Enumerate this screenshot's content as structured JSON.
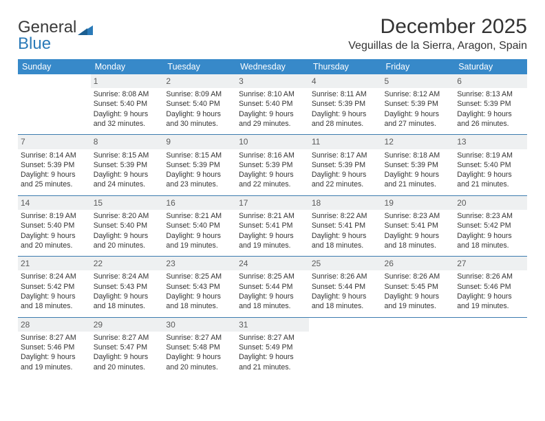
{
  "brand": {
    "word1": "General",
    "word2": "Blue"
  },
  "title": "December 2025",
  "location": "Veguillas de la Sierra, Aragon, Spain",
  "colors": {
    "header_bg": "#3789c9",
    "header_fg": "#ffffff",
    "daynum_bg": "#eef0f1",
    "rule": "#3a7aae",
    "text": "#333333"
  },
  "dayNames": [
    "Sunday",
    "Monday",
    "Tuesday",
    "Wednesday",
    "Thursday",
    "Friday",
    "Saturday"
  ],
  "weeks": [
    [
      {
        "n": "",
        "lines": []
      },
      {
        "n": "1",
        "lines": [
          "Sunrise: 8:08 AM",
          "Sunset: 5:40 PM",
          "Daylight: 9 hours and 32 minutes."
        ]
      },
      {
        "n": "2",
        "lines": [
          "Sunrise: 8:09 AM",
          "Sunset: 5:40 PM",
          "Daylight: 9 hours and 30 minutes."
        ]
      },
      {
        "n": "3",
        "lines": [
          "Sunrise: 8:10 AM",
          "Sunset: 5:40 PM",
          "Daylight: 9 hours and 29 minutes."
        ]
      },
      {
        "n": "4",
        "lines": [
          "Sunrise: 8:11 AM",
          "Sunset: 5:39 PM",
          "Daylight: 9 hours and 28 minutes."
        ]
      },
      {
        "n": "5",
        "lines": [
          "Sunrise: 8:12 AM",
          "Sunset: 5:39 PM",
          "Daylight: 9 hours and 27 minutes."
        ]
      },
      {
        "n": "6",
        "lines": [
          "Sunrise: 8:13 AM",
          "Sunset: 5:39 PM",
          "Daylight: 9 hours and 26 minutes."
        ]
      }
    ],
    [
      {
        "n": "7",
        "lines": [
          "Sunrise: 8:14 AM",
          "Sunset: 5:39 PM",
          "Daylight: 9 hours and 25 minutes."
        ]
      },
      {
        "n": "8",
        "lines": [
          "Sunrise: 8:15 AM",
          "Sunset: 5:39 PM",
          "Daylight: 9 hours and 24 minutes."
        ]
      },
      {
        "n": "9",
        "lines": [
          "Sunrise: 8:15 AM",
          "Sunset: 5:39 PM",
          "Daylight: 9 hours and 23 minutes."
        ]
      },
      {
        "n": "10",
        "lines": [
          "Sunrise: 8:16 AM",
          "Sunset: 5:39 PM",
          "Daylight: 9 hours and 22 minutes."
        ]
      },
      {
        "n": "11",
        "lines": [
          "Sunrise: 8:17 AM",
          "Sunset: 5:39 PM",
          "Daylight: 9 hours and 22 minutes."
        ]
      },
      {
        "n": "12",
        "lines": [
          "Sunrise: 8:18 AM",
          "Sunset: 5:39 PM",
          "Daylight: 9 hours and 21 minutes."
        ]
      },
      {
        "n": "13",
        "lines": [
          "Sunrise: 8:19 AM",
          "Sunset: 5:40 PM",
          "Daylight: 9 hours and 21 minutes."
        ]
      }
    ],
    [
      {
        "n": "14",
        "lines": [
          "Sunrise: 8:19 AM",
          "Sunset: 5:40 PM",
          "Daylight: 9 hours and 20 minutes."
        ]
      },
      {
        "n": "15",
        "lines": [
          "Sunrise: 8:20 AM",
          "Sunset: 5:40 PM",
          "Daylight: 9 hours and 20 minutes."
        ]
      },
      {
        "n": "16",
        "lines": [
          "Sunrise: 8:21 AM",
          "Sunset: 5:40 PM",
          "Daylight: 9 hours and 19 minutes."
        ]
      },
      {
        "n": "17",
        "lines": [
          "Sunrise: 8:21 AM",
          "Sunset: 5:41 PM",
          "Daylight: 9 hours and 19 minutes."
        ]
      },
      {
        "n": "18",
        "lines": [
          "Sunrise: 8:22 AM",
          "Sunset: 5:41 PM",
          "Daylight: 9 hours and 18 minutes."
        ]
      },
      {
        "n": "19",
        "lines": [
          "Sunrise: 8:23 AM",
          "Sunset: 5:41 PM",
          "Daylight: 9 hours and 18 minutes."
        ]
      },
      {
        "n": "20",
        "lines": [
          "Sunrise: 8:23 AM",
          "Sunset: 5:42 PM",
          "Daylight: 9 hours and 18 minutes."
        ]
      }
    ],
    [
      {
        "n": "21",
        "lines": [
          "Sunrise: 8:24 AM",
          "Sunset: 5:42 PM",
          "Daylight: 9 hours and 18 minutes."
        ]
      },
      {
        "n": "22",
        "lines": [
          "Sunrise: 8:24 AM",
          "Sunset: 5:43 PM",
          "Daylight: 9 hours and 18 minutes."
        ]
      },
      {
        "n": "23",
        "lines": [
          "Sunrise: 8:25 AM",
          "Sunset: 5:43 PM",
          "Daylight: 9 hours and 18 minutes."
        ]
      },
      {
        "n": "24",
        "lines": [
          "Sunrise: 8:25 AM",
          "Sunset: 5:44 PM",
          "Daylight: 9 hours and 18 minutes."
        ]
      },
      {
        "n": "25",
        "lines": [
          "Sunrise: 8:26 AM",
          "Sunset: 5:44 PM",
          "Daylight: 9 hours and 18 minutes."
        ]
      },
      {
        "n": "26",
        "lines": [
          "Sunrise: 8:26 AM",
          "Sunset: 5:45 PM",
          "Daylight: 9 hours and 19 minutes."
        ]
      },
      {
        "n": "27",
        "lines": [
          "Sunrise: 8:26 AM",
          "Sunset: 5:46 PM",
          "Daylight: 9 hours and 19 minutes."
        ]
      }
    ],
    [
      {
        "n": "28",
        "lines": [
          "Sunrise: 8:27 AM",
          "Sunset: 5:46 PM",
          "Daylight: 9 hours and 19 minutes."
        ]
      },
      {
        "n": "29",
        "lines": [
          "Sunrise: 8:27 AM",
          "Sunset: 5:47 PM",
          "Daylight: 9 hours and 20 minutes."
        ]
      },
      {
        "n": "30",
        "lines": [
          "Sunrise: 8:27 AM",
          "Sunset: 5:48 PM",
          "Daylight: 9 hours and 20 minutes."
        ]
      },
      {
        "n": "31",
        "lines": [
          "Sunrise: 8:27 AM",
          "Sunset: 5:49 PM",
          "Daylight: 9 hours and 21 minutes."
        ]
      },
      {
        "n": "",
        "lines": []
      },
      {
        "n": "",
        "lines": []
      },
      {
        "n": "",
        "lines": []
      }
    ]
  ]
}
